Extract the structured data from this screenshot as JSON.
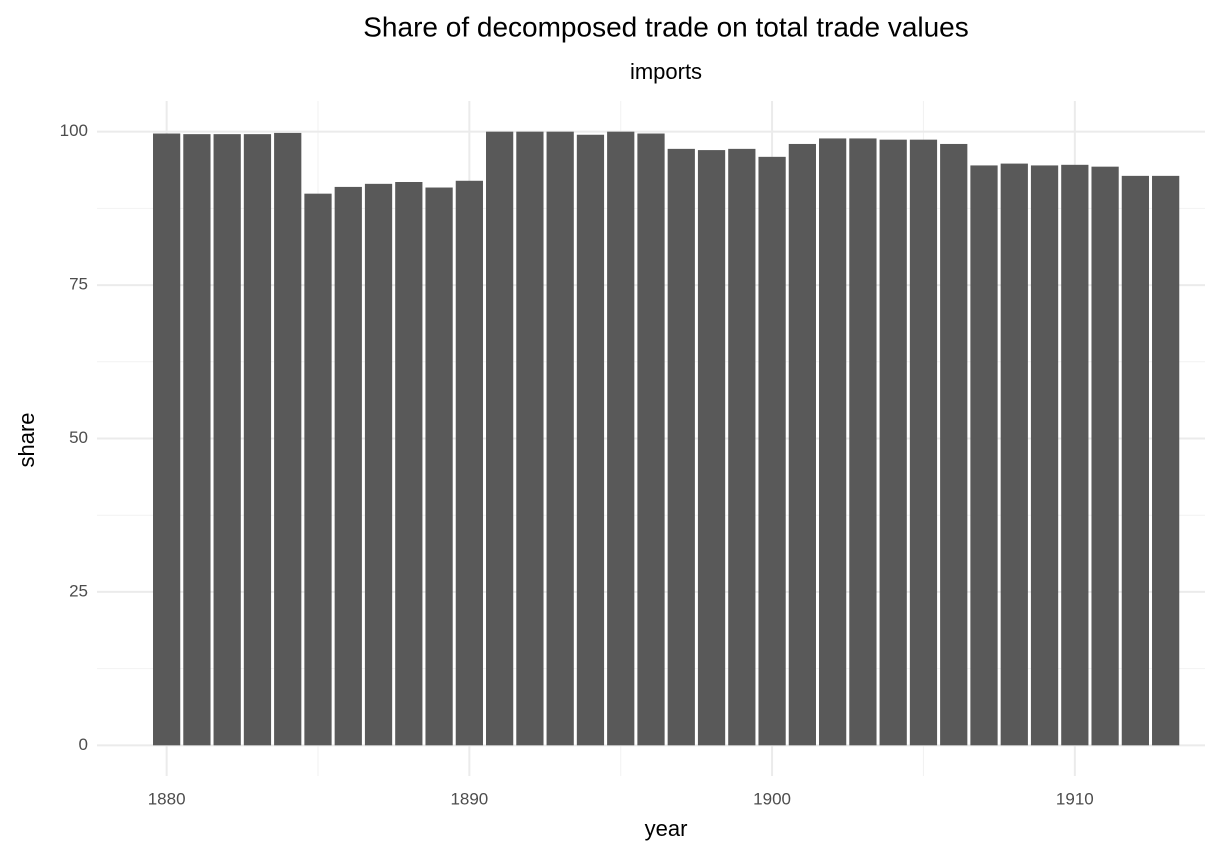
{
  "chart_data": {
    "type": "bar",
    "title": "Share of decomposed trade on total trade values",
    "subtitle": "imports",
    "xlabel": "year",
    "ylabel": "share",
    "x": [
      1880,
      1881,
      1882,
      1883,
      1884,
      1885,
      1886,
      1887,
      1888,
      1889,
      1890,
      1891,
      1892,
      1893,
      1894,
      1895,
      1896,
      1897,
      1898,
      1899,
      1900,
      1901,
      1902,
      1903,
      1904,
      1905,
      1906,
      1907,
      1908,
      1909,
      1910,
      1911,
      1912,
      1913
    ],
    "values": [
      99.7,
      99.6,
      99.6,
      99.6,
      99.8,
      89.9,
      91.0,
      91.5,
      91.8,
      90.9,
      92.0,
      100,
      100,
      100,
      99.5,
      100,
      99.7,
      97.2,
      97.0,
      97.2,
      95.9,
      98.0,
      98.9,
      98.9,
      98.7,
      98.7,
      98.0,
      94.5,
      94.8,
      94.5,
      94.6,
      94.3,
      92.8,
      92.8
    ],
    "color": "#595959",
    "xlim": [
      1877.7,
      1914.3
    ],
    "xticks": [
      1880,
      1890,
      1900,
      1910
    ],
    "xminor": [
      1885,
      1895,
      1905
    ],
    "ylim": [
      -5,
      105
    ],
    "yticks": [
      0,
      25,
      50,
      75,
      100
    ],
    "yminor": [
      12.5,
      37.5,
      62.5,
      87.5
    ],
    "grid": true
  }
}
